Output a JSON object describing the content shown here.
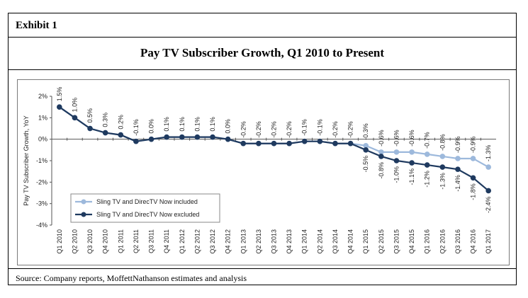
{
  "exhibit": "Exhibit 1",
  "source": "Source: Company reports, MoffettNathanson estimates and analysis",
  "chart_data": {
    "type": "line",
    "title": "Pay TV Subscriber Growth, Q1 2010 to Present",
    "ylabel": "Pay TV Subscriber Growth, YoY",
    "xlabel": "",
    "ylim": [
      -4,
      2
    ],
    "yticks": [
      "2%",
      "1%",
      "0%",
      "-1%",
      "-2%",
      "-3%",
      "-4%"
    ],
    "grid": false,
    "legend_position": "bottom-left",
    "categories": [
      "Q1 2010",
      "Q2 2010",
      "Q3 2010",
      "Q4 2010",
      "Q1 2011",
      "Q2 2011",
      "Q3 2011",
      "Q4 2011",
      "Q1 2012",
      "Q2 2012",
      "Q3 2012",
      "Q4 2012",
      "Q1 2013",
      "Q2 2013",
      "Q3 2013",
      "Q4 2013",
      "Q1 2014",
      "Q2 2014",
      "Q3 2014",
      "Q4 2014",
      "Q1 2015",
      "Q2 2015",
      "Q3 2015",
      "Q4 2015",
      "Q1 2016",
      "Q2 2016",
      "Q3 2016",
      "Q4 2016",
      "Q1 2017"
    ],
    "series": [
      {
        "name": "Sling TV and DirecTV Now included",
        "color": "#9db9dc",
        "values": [
          1.5,
          1.0,
          0.5,
          0.3,
          0.2,
          -0.1,
          0.0,
          0.1,
          0.1,
          0.1,
          0.1,
          0.0,
          -0.2,
          -0.2,
          -0.2,
          -0.2,
          -0.1,
          -0.1,
          -0.2,
          -0.2,
          -0.3,
          -0.6,
          -0.6,
          -0.6,
          -0.7,
          -0.8,
          -0.9,
          -0.9,
          -1.3
        ],
        "labels": [
          "1.5%",
          "1.0%",
          "0.5%",
          "0.3%",
          "0.2%",
          "-0.1%",
          "0.0%",
          "0.1%",
          "0.1%",
          "0.1%",
          "0.1%",
          "0.0%",
          "-0.2%",
          "-0.2%",
          "-0.2%",
          "-0.2%",
          "-0.1%",
          "-0.1%",
          "-0.2%",
          "-0.2%",
          "-0.3%",
          "-0.6%",
          "-0.6%",
          "-0.6%",
          "-0.7%",
          "-0.8%",
          "-0.9%",
          "-0.9%",
          "-1.3%"
        ]
      },
      {
        "name": "Sling TV and DirecTV Now excluded",
        "color": "#1f3a5f",
        "values": [
          1.5,
          1.0,
          0.5,
          0.3,
          0.2,
          -0.1,
          0.0,
          0.1,
          0.1,
          0.1,
          0.1,
          0.0,
          -0.2,
          -0.2,
          -0.2,
          -0.2,
          -0.1,
          -0.1,
          -0.2,
          -0.2,
          -0.5,
          -0.8,
          -1.0,
          -1.1,
          -1.2,
          -1.3,
          -1.4,
          -1.8,
          -2.4
        ],
        "labels": [
          "",
          "",
          "",
          "",
          "",
          "",
          "",
          "",
          "",
          "",
          "",
          "",
          "",
          "",
          "",
          "",
          "",
          "",
          "",
          "",
          "-0.5%",
          "-0.8%",
          "-1.0%",
          "-1.1%",
          "-1.2%",
          "-1.3%",
          "-1.4%",
          "-1.8%",
          "-2.4%"
        ]
      }
    ]
  }
}
